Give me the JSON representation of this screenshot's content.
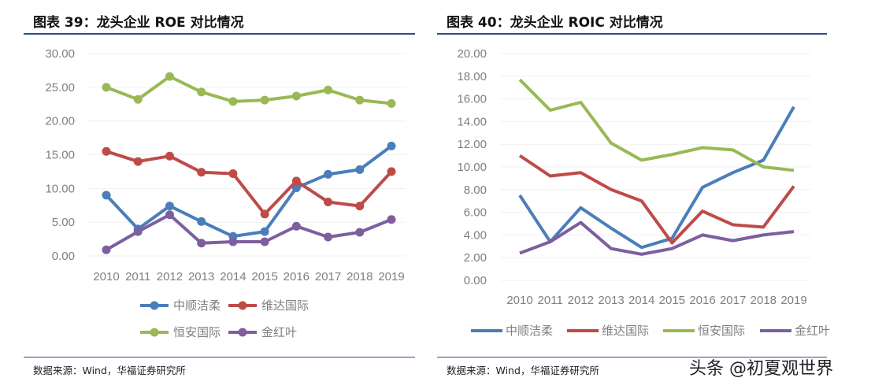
{
  "left_title": "图表 39：龙头企业 ROE 对比情况",
  "right_title": "图表 40：龙头企业 ROIC 对比情况",
  "left_source": "数据来源：Wind，华福证券研究所",
  "right_source": "数据来源：Wind，华福证券研究所",
  "watermark": "头条 @初夏观世界",
  "chart_data": [
    {
      "type": "line",
      "title": "图表 39：龙头企业 ROE 对比情况",
      "x": [
        "2010",
        "2011",
        "2012",
        "2013",
        "2014",
        "2015",
        "2016",
        "2017",
        "2018",
        "2019"
      ],
      "ylim": [
        0,
        30
      ],
      "yticks": [
        "0.00",
        "5.00",
        "10.00",
        "15.00",
        "20.00",
        "25.00",
        "30.00"
      ],
      "markers": true,
      "grid": true,
      "legend": "bottom",
      "series": [
        {
          "name": "中顺洁柔",
          "color": "#4a7ebb",
          "values": [
            9.0,
            4.0,
            7.4,
            5.1,
            2.9,
            3.6,
            10.1,
            12.1,
            12.8,
            16.3
          ]
        },
        {
          "name": "维达国际",
          "color": "#be4b48",
          "values": [
            15.5,
            14.0,
            14.8,
            12.4,
            12.2,
            6.2,
            11.1,
            8.0,
            7.4,
            12.5
          ]
        },
        {
          "name": "恒安国际",
          "color": "#98b954",
          "values": [
            25.0,
            23.2,
            26.6,
            24.3,
            22.9,
            23.1,
            23.7,
            24.6,
            23.1,
            22.6
          ]
        },
        {
          "name": "金红叶",
          "color": "#7d5fa0",
          "values": [
            0.9,
            3.6,
            6.1,
            1.9,
            2.1,
            2.1,
            4.4,
            2.8,
            3.5,
            5.4
          ]
        }
      ]
    },
    {
      "type": "line",
      "title": "图表 40：龙头企业 ROIC 对比情况",
      "x": [
        "2010",
        "2011",
        "2012",
        "2013",
        "2014",
        "2015",
        "2016",
        "2017",
        "2018",
        "2019"
      ],
      "ylim": [
        0,
        20
      ],
      "yticks": [
        "0.00",
        "2.00",
        "4.00",
        "6.00",
        "8.00",
        "10.00",
        "12.00",
        "14.00",
        "16.00",
        "18.00",
        "20.00"
      ],
      "markers": false,
      "grid": true,
      "legend": "bottom",
      "series": [
        {
          "name": "中顺洁柔",
          "color": "#4a7ebb",
          "values": [
            7.5,
            3.4,
            6.4,
            4.6,
            2.9,
            3.7,
            8.2,
            9.5,
            10.6,
            15.3
          ]
        },
        {
          "name": "维达国际",
          "color": "#be4b48",
          "values": [
            11.0,
            9.2,
            9.5,
            8.0,
            7.0,
            3.3,
            6.1,
            4.9,
            4.7,
            8.3
          ]
        },
        {
          "name": "恒安国际",
          "color": "#98b954",
          "values": [
            17.7,
            15.0,
            15.7,
            12.1,
            10.6,
            11.1,
            11.7,
            11.5,
            10.0,
            9.7
          ]
        },
        {
          "name": "金红叶",
          "color": "#7d5fa0",
          "values": [
            2.4,
            3.4,
            5.1,
            2.8,
            2.3,
            2.8,
            4.0,
            3.5,
            4.0,
            4.3
          ]
        }
      ]
    }
  ]
}
